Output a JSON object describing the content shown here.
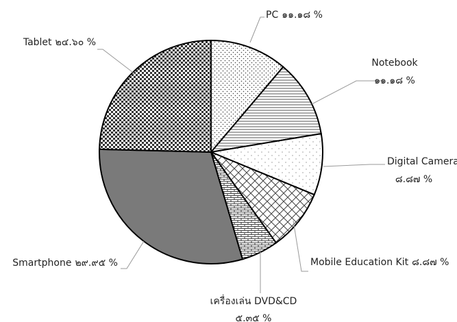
{
  "chart_data": {
    "type": "pie",
    "categories": [
      "PC",
      "Notebook",
      "Digital Camera",
      "Mobile Education Kit",
      "เครื่องเล่น DVD&CD",
      "Smartphone",
      "Tablet"
    ],
    "values": [
      11.18,
      11.18,
      8.87,
      8.87,
      5.35,
      29.95,
      24.6
    ],
    "value_labels": [
      "๑๑.๑๘ %",
      "๑๑.๑๘ %",
      "๘.๘๗ %",
      "๘.๘๗ %",
      "๕.๓๕ %",
      "๒๙.๙๕ %",
      "๒๔.๖๐ %"
    ]
  }
}
